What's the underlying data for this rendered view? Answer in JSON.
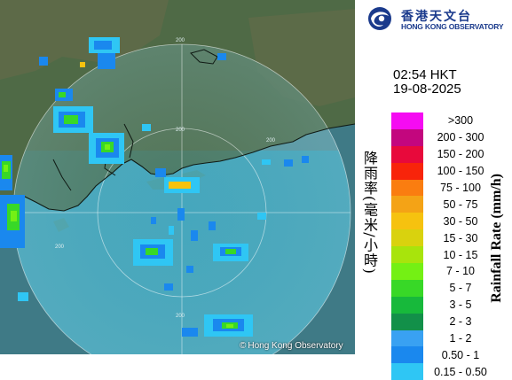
{
  "observatory": {
    "name_zh": "香港天文台",
    "name_en": "HONG KONG OBSERVATORY",
    "logo_icon": "hko-swirl-logo-icon",
    "brand_color": "#1a3a8c"
  },
  "timestamp": {
    "time": "02:54 HKT",
    "date": "19-08-2025"
  },
  "axis_label": {
    "zh": "降雨率(毫米/小時)",
    "en": "Rainfall Rate (mm/h)"
  },
  "legend": [
    {
      "label": ">300",
      "color": "#f50bf2"
    },
    {
      "label": "200 - 300",
      "color": "#c3067e"
    },
    {
      "label": "150 - 200",
      "color": "#e8093b"
    },
    {
      "label": "100 - 150",
      "color": "#f8240a"
    },
    {
      "label": "75 - 100",
      "color": "#fa7d10"
    },
    {
      "label": "50 - 75",
      "color": "#f4a316"
    },
    {
      "label": "30 - 50",
      "color": "#f6c20f"
    },
    {
      "label": "15 - 30",
      "color": "#d9d20e"
    },
    {
      "label": "10 - 15",
      "color": "#a8e40c"
    },
    {
      "label": "7 - 10",
      "color": "#74f014"
    },
    {
      "label": "5 - 7",
      "color": "#38d827"
    },
    {
      "label": "3 - 5",
      "color": "#17b93b"
    },
    {
      "label": "2 - 3",
      "color": "#129049"
    },
    {
      "label": "1 - 2",
      "color": "#39a1f2"
    },
    {
      "label": "0.50 - 1",
      "color": "#1a88ee"
    },
    {
      "label": "0.15 - 0.50",
      "color": "#2fc6f4"
    }
  ],
  "map": {
    "range_rings": [
      "200",
      "200",
      "200",
      "200",
      "200"
    ],
    "copyright": "Hong Kong Observatory",
    "copyright_symbol": "©",
    "sea_color": "#5a98a8",
    "land_color": "#4e6a48"
  }
}
